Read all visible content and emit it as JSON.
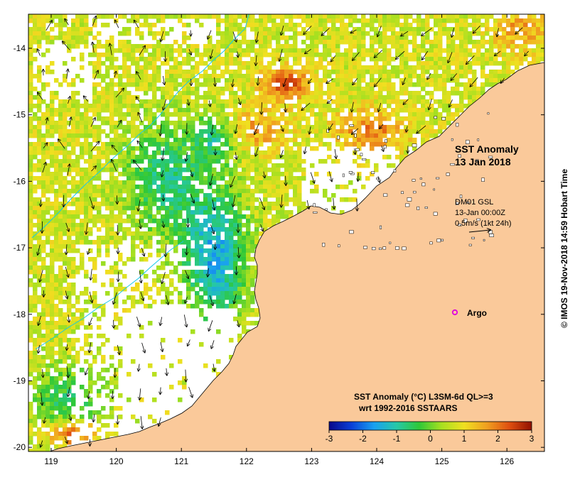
{
  "map": {
    "title_line1": "SST Anomaly",
    "title_line2": "13 Jan 2018",
    "mooring_name": "DM01 GSL",
    "mooring_time": "13-Jan 00:00Z",
    "scale_label": "0.5m/s (1kt 24h)",
    "argo_label": "Argo",
    "argo_color": "#e000e0",
    "land_color": "#fac99a",
    "credit": "© IMOS 19-Nov-2018 14:59 Hobart Time",
    "colorbar_title_line1": "SST Anomaly (°C) L3SM-6d QL>=3",
    "colorbar_title_line2": "wrt 1992-2016 SSTAARS",
    "colorbar_ticks": [
      "-3",
      "-2",
      "-1",
      "0",
      "1",
      "2",
      "3"
    ],
    "colorbar_stops": [
      "#08088a",
      "#0a40d8",
      "#19a0f0",
      "#26c8a8",
      "#2ec838",
      "#a8e020",
      "#f0e020",
      "#f0a020",
      "#e05010",
      "#901000"
    ],
    "lon_ticks": [
      "119",
      "120",
      "121",
      "122",
      "123",
      "124",
      "125",
      "126"
    ],
    "lat_ticks": [
      "-14",
      "-15",
      "-16",
      "-17",
      "-18",
      "-19",
      "-20"
    ]
  }
}
